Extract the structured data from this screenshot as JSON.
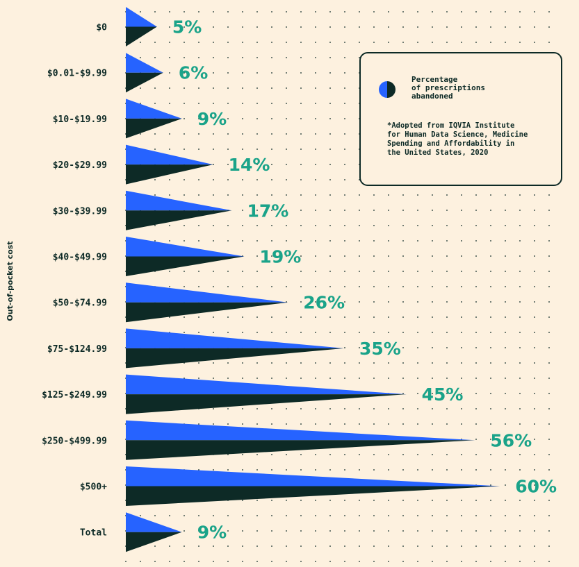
{
  "colors": {
    "background": "#fdf1df",
    "upper_triangle": "#2663ff",
    "lower_triangle": "#0d2a26",
    "value_text": "#1aa389",
    "label_text": "#0d2a26",
    "grid_dots": "#0d2a26"
  },
  "legend": {
    "icon": "half-circle-icon",
    "label": "Percentage\nof prescriptions\nabandoned",
    "note": "*Adopted from IQVIA Institute\nfor Human Data Science, Medicine\nSpending and Affordability in\nthe United States, 2020"
  },
  "chart_data": {
    "type": "bar",
    "orientation": "horizontal",
    "marker": "triangle",
    "ylabel": "Out-of-pocket cost",
    "xlabel": "",
    "title": "",
    "categories": [
      "$0",
      "$0.01-$9.99",
      "$10-$19.99",
      "$20-$29.99",
      "$30-$39.99",
      "$40-$49.99",
      "$50-$74.99",
      "$75-$124.99",
      "$125-$249.99",
      "$250-$499.99",
      "$500+",
      "Total"
    ],
    "values": [
      5,
      6,
      9,
      14,
      17,
      19,
      26,
      35,
      45,
      56,
      60,
      9
    ],
    "value_labels": [
      "5%",
      "6%",
      "9%",
      "14%",
      "17%",
      "19%",
      "26%",
      "35%",
      "45%",
      "56%",
      "60%",
      "9%"
    ],
    "unit": "%",
    "grid": "dotted",
    "legend_position": "top-right"
  }
}
